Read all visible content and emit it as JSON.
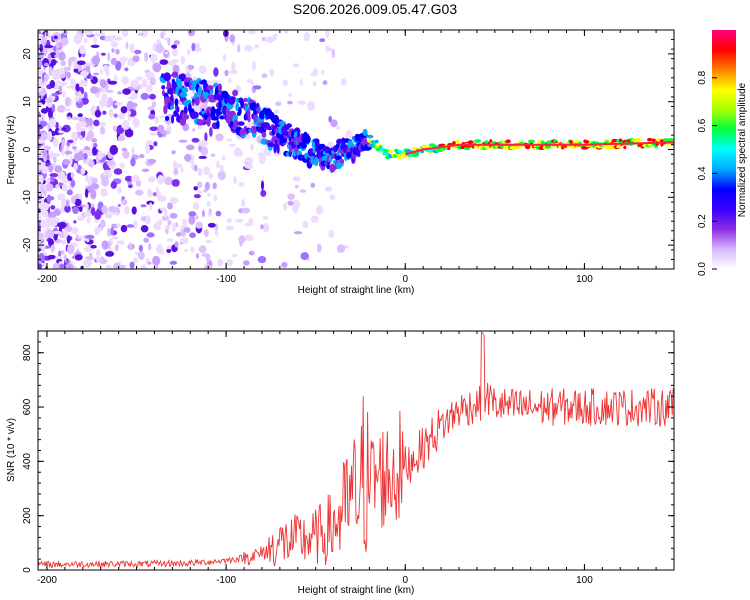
{
  "title": "S206.2026.009.05.47.G03",
  "chart_data": [
    {
      "id": "spectrogram",
      "type": "heatmap",
      "xlabel": "Height of straight line (km)",
      "ylabel": "Frequency (Hz)",
      "xlim": [
        -205,
        150
      ],
      "ylim": [
        -25,
        25
      ],
      "xticks": [
        -200,
        -100,
        0,
        100
      ],
      "yticks": [
        -20,
        -10,
        0,
        10,
        20
      ],
      "colorbar": {
        "label": "Normalized spectral amplitude",
        "range": [
          0,
          1
        ],
        "ticks": [
          "0.0",
          "0.2",
          "0.4",
          "0.6",
          "0.8"
        ],
        "colors": [
          "#ffffff",
          "#d8b8ff",
          "#8a2be2",
          "#3a00ff",
          "#0000ff",
          "#00aaff",
          "#00ffff",
          "#00ff40",
          "#aaff00",
          "#ffff00",
          "#ff8000",
          "#ff0000",
          "#ff0080"
        ]
      },
      "signal_track": {
        "description": "dominant frequency ridge vs height",
        "x": [
          -130,
          -100,
          -80,
          -60,
          -45,
          -30,
          -20,
          -10,
          0,
          10,
          30,
          60,
          100,
          150
        ],
        "y": [
          11,
          9,
          5,
          1,
          -2,
          0,
          2,
          -1,
          -1,
          0,
          1,
          1,
          1,
          1.5
        ]
      }
    },
    {
      "id": "snr",
      "type": "line",
      "xlabel": "Height of straight line (km)",
      "ylabel": "SNR (10 * v/v)",
      "xlim": [
        -205,
        150
      ],
      "ylim": [
        0,
        880
      ],
      "xticks": [
        -200,
        -100,
        0,
        100
      ],
      "yticks": [
        0,
        200,
        400,
        600,
        800
      ],
      "series": [
        {
          "name": "SNR",
          "color": "#ee3333",
          "x": [
            -205,
            -180,
            -150,
            -120,
            -100,
            -90,
            -80,
            -75,
            -70,
            -60,
            -50,
            -40,
            -30,
            -20,
            -10,
            0,
            10,
            20,
            30,
            40,
            43,
            45,
            50,
            60,
            80,
            100,
            120,
            150
          ],
          "y": [
            20,
            22,
            22,
            25,
            35,
            45,
            60,
            80,
            100,
            110,
            120,
            160,
            260,
            330,
            350,
            380,
            450,
            530,
            590,
            610,
            620,
            640,
            610,
            600,
            600,
            600,
            600,
            600
          ]
        }
      ]
    }
  ]
}
